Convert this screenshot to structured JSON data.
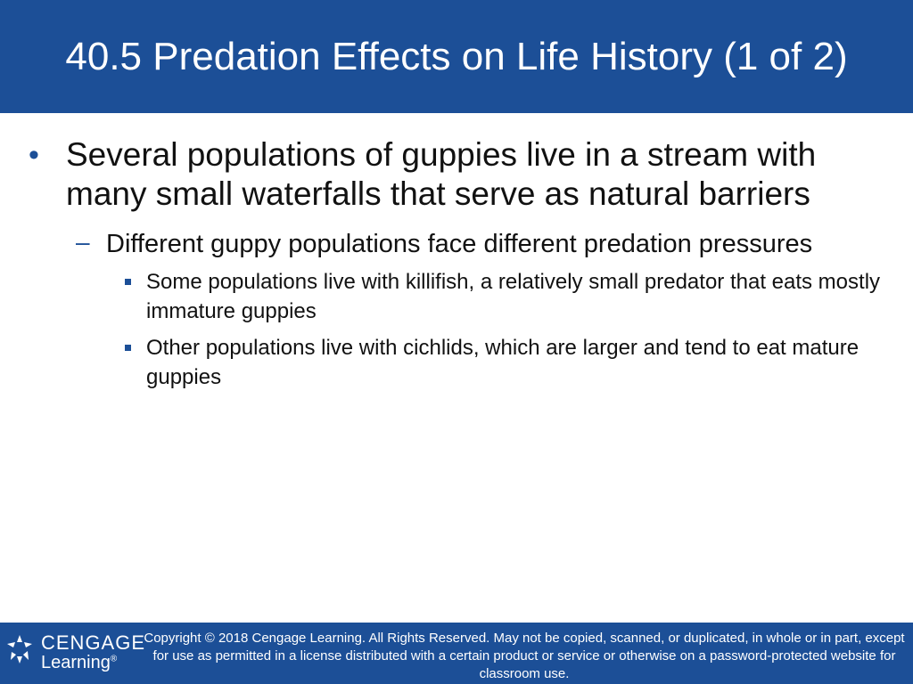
{
  "slide": {
    "title": "40.5 Predation Effects on Life History (1 of 2)",
    "bullets": [
      {
        "text": "Several populations of guppies live in a stream with many small waterfalls that serve as natural barriers",
        "sub": [
          {
            "text": "Different guppy populations face different predation pressures",
            "sub": [
              "Some populations live with killifish, a relatively small predator that eats mostly immature guppies",
              "Other populations live with cichlids, which are larger and tend to eat mature guppies"
            ]
          }
        ]
      }
    ],
    "markers": {
      "level1": "•",
      "level2": "–"
    }
  },
  "footer": {
    "logo": {
      "line1": "CENGAGE",
      "line2": "Learning",
      "reg": "®",
      "icon": "cengage-star-icon"
    },
    "copyright": "Copyright © 2018 Cengage Learning. All Rights Reserved. May not be copied, scanned, or duplicated, in whole or in part, except for use as permitted in a license distributed with a certain product or service or otherwise on a password-protected website for classroom use."
  },
  "colors": {
    "accent": "#1c4f97",
    "text": "#111111",
    "background": "#ffffff"
  }
}
